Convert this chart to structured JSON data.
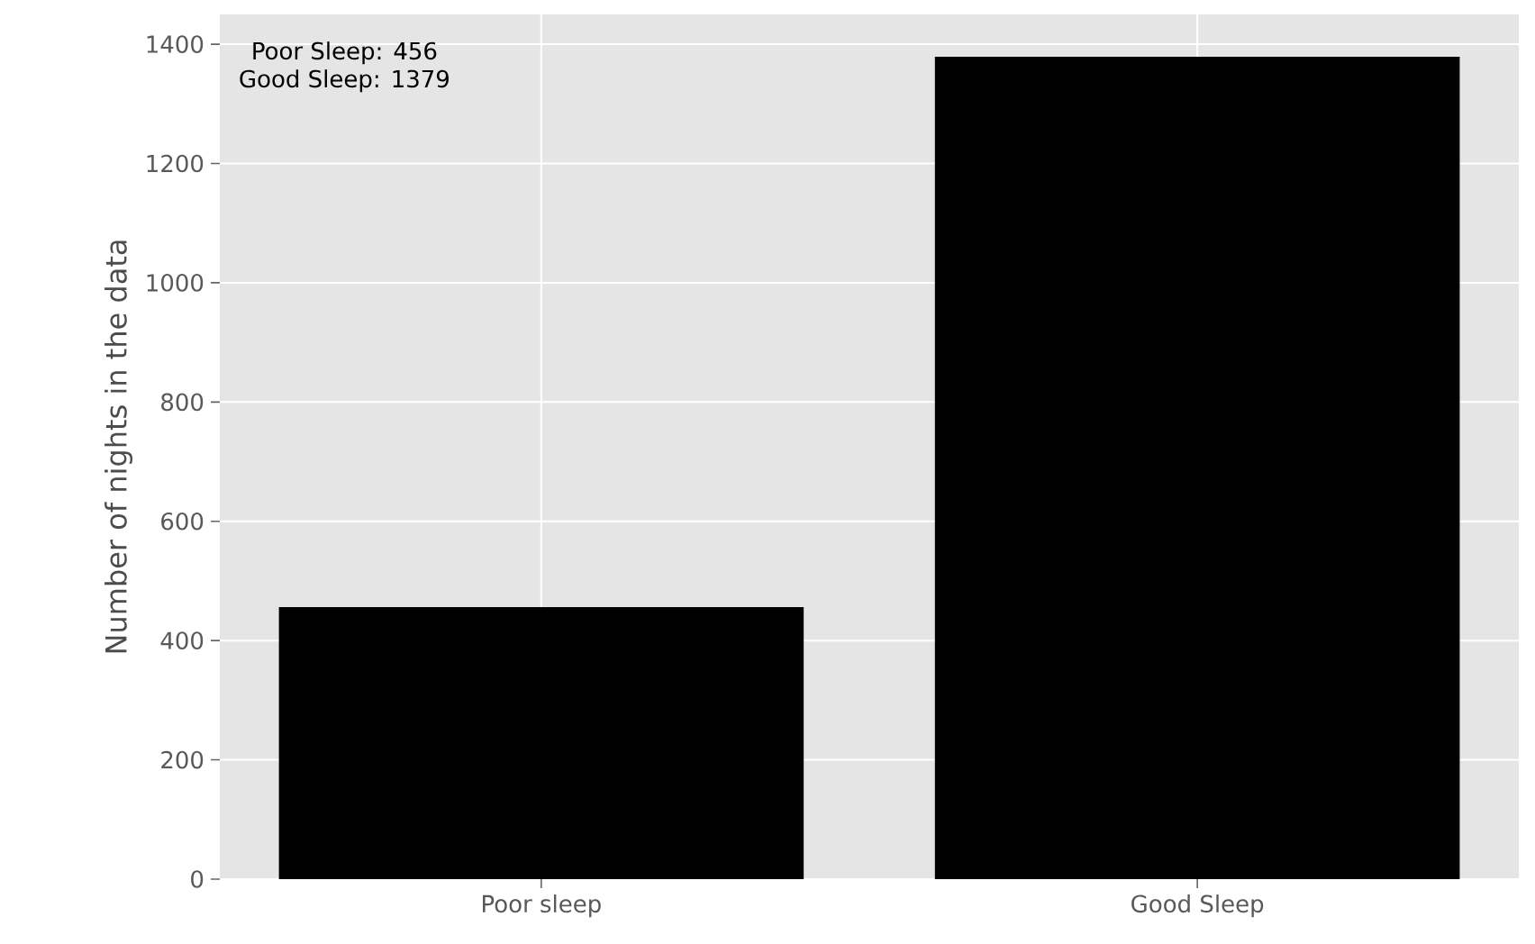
{
  "chart_data": {
    "type": "bar",
    "categories": [
      "Poor sleep",
      "Good Sleep"
    ],
    "values": [
      456,
      1379
    ],
    "color": "#000000",
    "ylabel": "Number of nights in the data",
    "ylim": [
      0,
      1450
    ],
    "yticks": [
      0,
      200,
      400,
      600,
      800,
      1000,
      1200,
      1400
    ],
    "grid": true,
    "annotations": [
      "Poor Sleep: 456",
      "Good Sleep: 1379"
    ]
  }
}
